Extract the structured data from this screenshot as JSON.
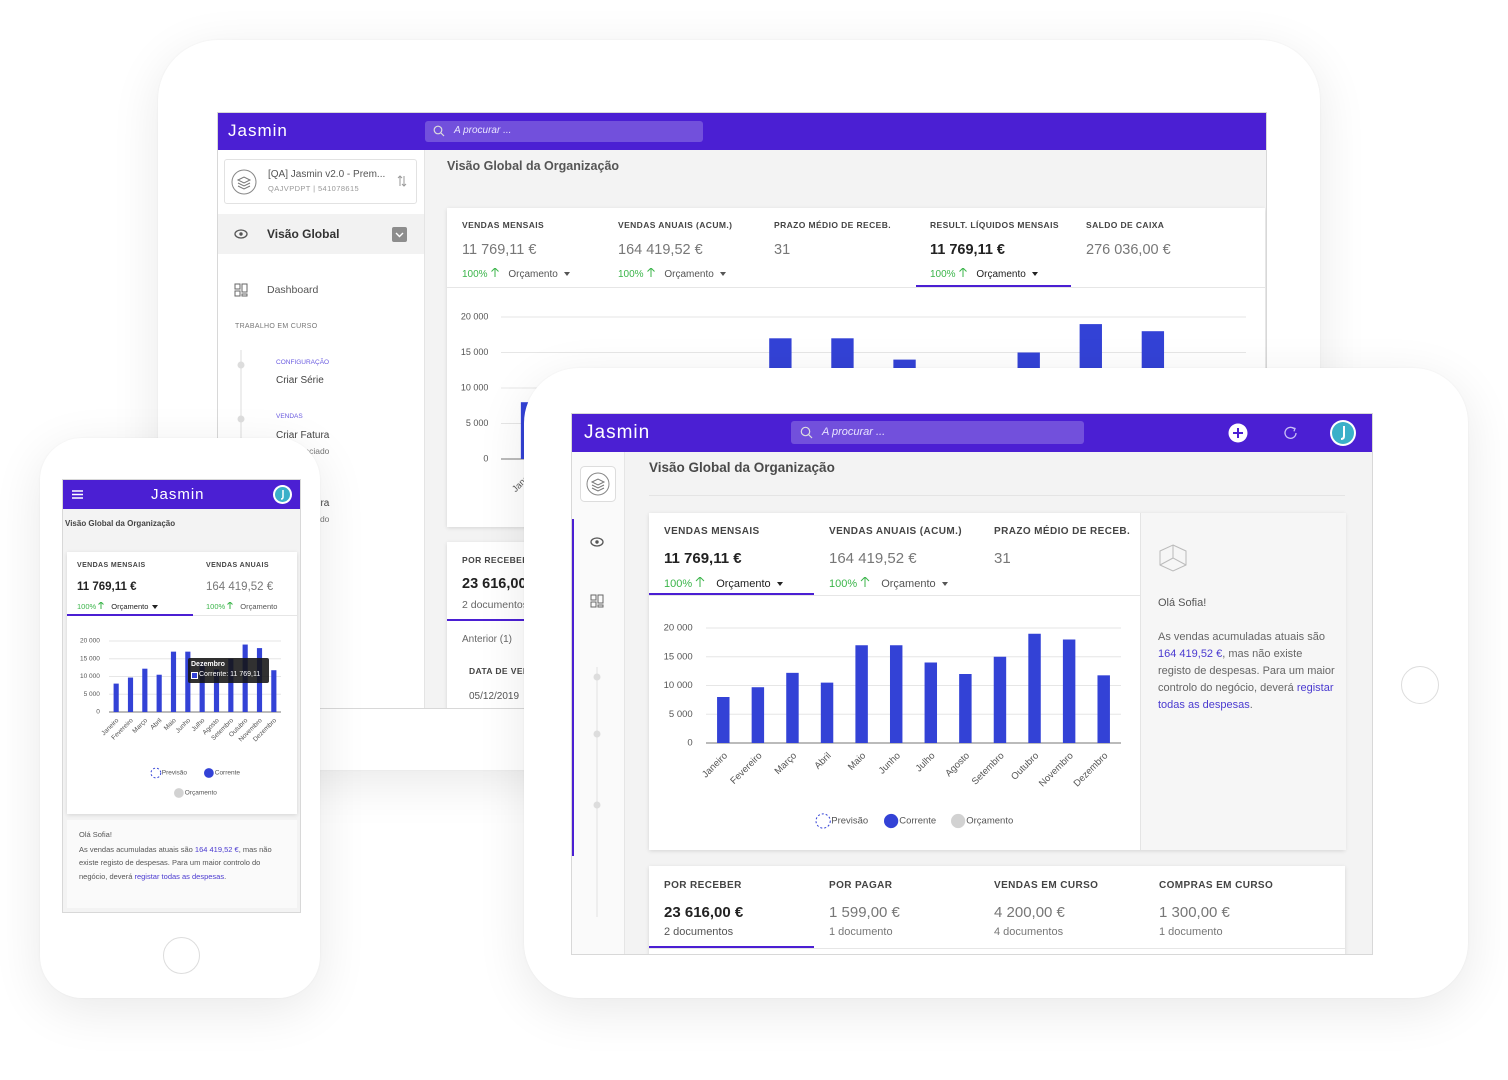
{
  "app": {
    "brand": "Jasmin",
    "search_placeholder": "A procurar ...",
    "page_title": "Visão Global da Organização"
  },
  "sidebar": {
    "company": "[QA] Jasmin v2.0 - Prem...",
    "company_id": "QAJVPDPT | 541078615",
    "section": "Visão Global",
    "dashboard": "Dashboard",
    "work_heading": "TRABALHO EM CURSO",
    "tasks": [
      {
        "group": "CONFIGURAÇÃO",
        "title": "Criar Série"
      },
      {
        "group": "VENDAS",
        "title": "Criar Fatura",
        "subtitle": "Indiferenciado"
      },
      {
        "title": "Criar Fatura",
        "subtitle": "Indiferenciado"
      }
    ]
  },
  "kpis": [
    {
      "label": "VENDAS MENSAIS",
      "value": "11 769,11 €",
      "change": "100%",
      "budget": "Orçamento"
    },
    {
      "label": "VENDAS ANUAIS (ACUM.)",
      "value": "164 419,52 €",
      "change": "100%",
      "budget": "Orçamento"
    },
    {
      "label": "PRAZO MÉDIO DE RECEB.",
      "value": "31"
    },
    {
      "label": "RESULT. LÍQUIDOS MENSAIS",
      "value": "11 769,11 €",
      "change": "100%",
      "budget": "Orçamento"
    },
    {
      "label": "SALDO DE CAIXA",
      "value": "276 036,00 €"
    }
  ],
  "documents": [
    {
      "label": "POR RECEBER",
      "value": "23 616,00 €",
      "count": "2 documentos"
    },
    {
      "label": "POR PAGAR",
      "value": "1 599,00 €",
      "count": "1 documento"
    },
    {
      "label": "VENDAS EM CURSO",
      "value": "4 200,00 €",
      "count": "4 documentos"
    },
    {
      "label": "COMPRAS EM CURSO",
      "value": "1 300,00 €",
      "count": "1 documento"
    }
  ],
  "receivables_table": {
    "previous": "Anterior (1)",
    "column": "DATA DE VENCIMENTO",
    "rows": [
      [
        "05/12/2019"
      ]
    ]
  },
  "phone": {
    "annual_label": "VENDAS ANUAIS",
    "tooltip_value": "Corrente: 11 769,11"
  },
  "message": {
    "greeting": "Olá Sofia!",
    "text_1": "As vendas acumuladas atuais são ",
    "amount": "164 419,52 €",
    "text_2": ", mas não existe registo de despesas. Para um maior controlo do negócio, deverá ",
    "link": "registar todas as despesas",
    "text_3": "."
  },
  "chart_data": {
    "type": "bar",
    "categories": [
      "Janeiro",
      "Fevereiro",
      "Março",
      "Abril",
      "Maio",
      "Junho",
      "Julho",
      "Agosto",
      "Setembro",
      "Outubro",
      "Novembro",
      "Dezembro"
    ],
    "series": [
      {
        "name": "Previsão",
        "color": "#3342d6",
        "line_style": "dashed"
      },
      {
        "name": "Corrente",
        "color": "#3342d6",
        "values": [
          8000,
          9700,
          12200,
          10500,
          17000,
          17000,
          14000,
          12000,
          15000,
          19000,
          18000,
          11769.11
        ]
      },
      {
        "name": "Orçamento",
        "color": "#d2d2d2"
      }
    ],
    "ylim": [
      0,
      20000
    ],
    "yticks": [
      0,
      {
        "value": 5000,
        "label": "5 000"
      },
      {
        "value": 10000,
        "label": "10 000"
      },
      {
        "value": 15000,
        "label": "15 000"
      },
      {
        "value": 20000,
        "label": "20 000"
      }
    ],
    "grid": true
  }
}
